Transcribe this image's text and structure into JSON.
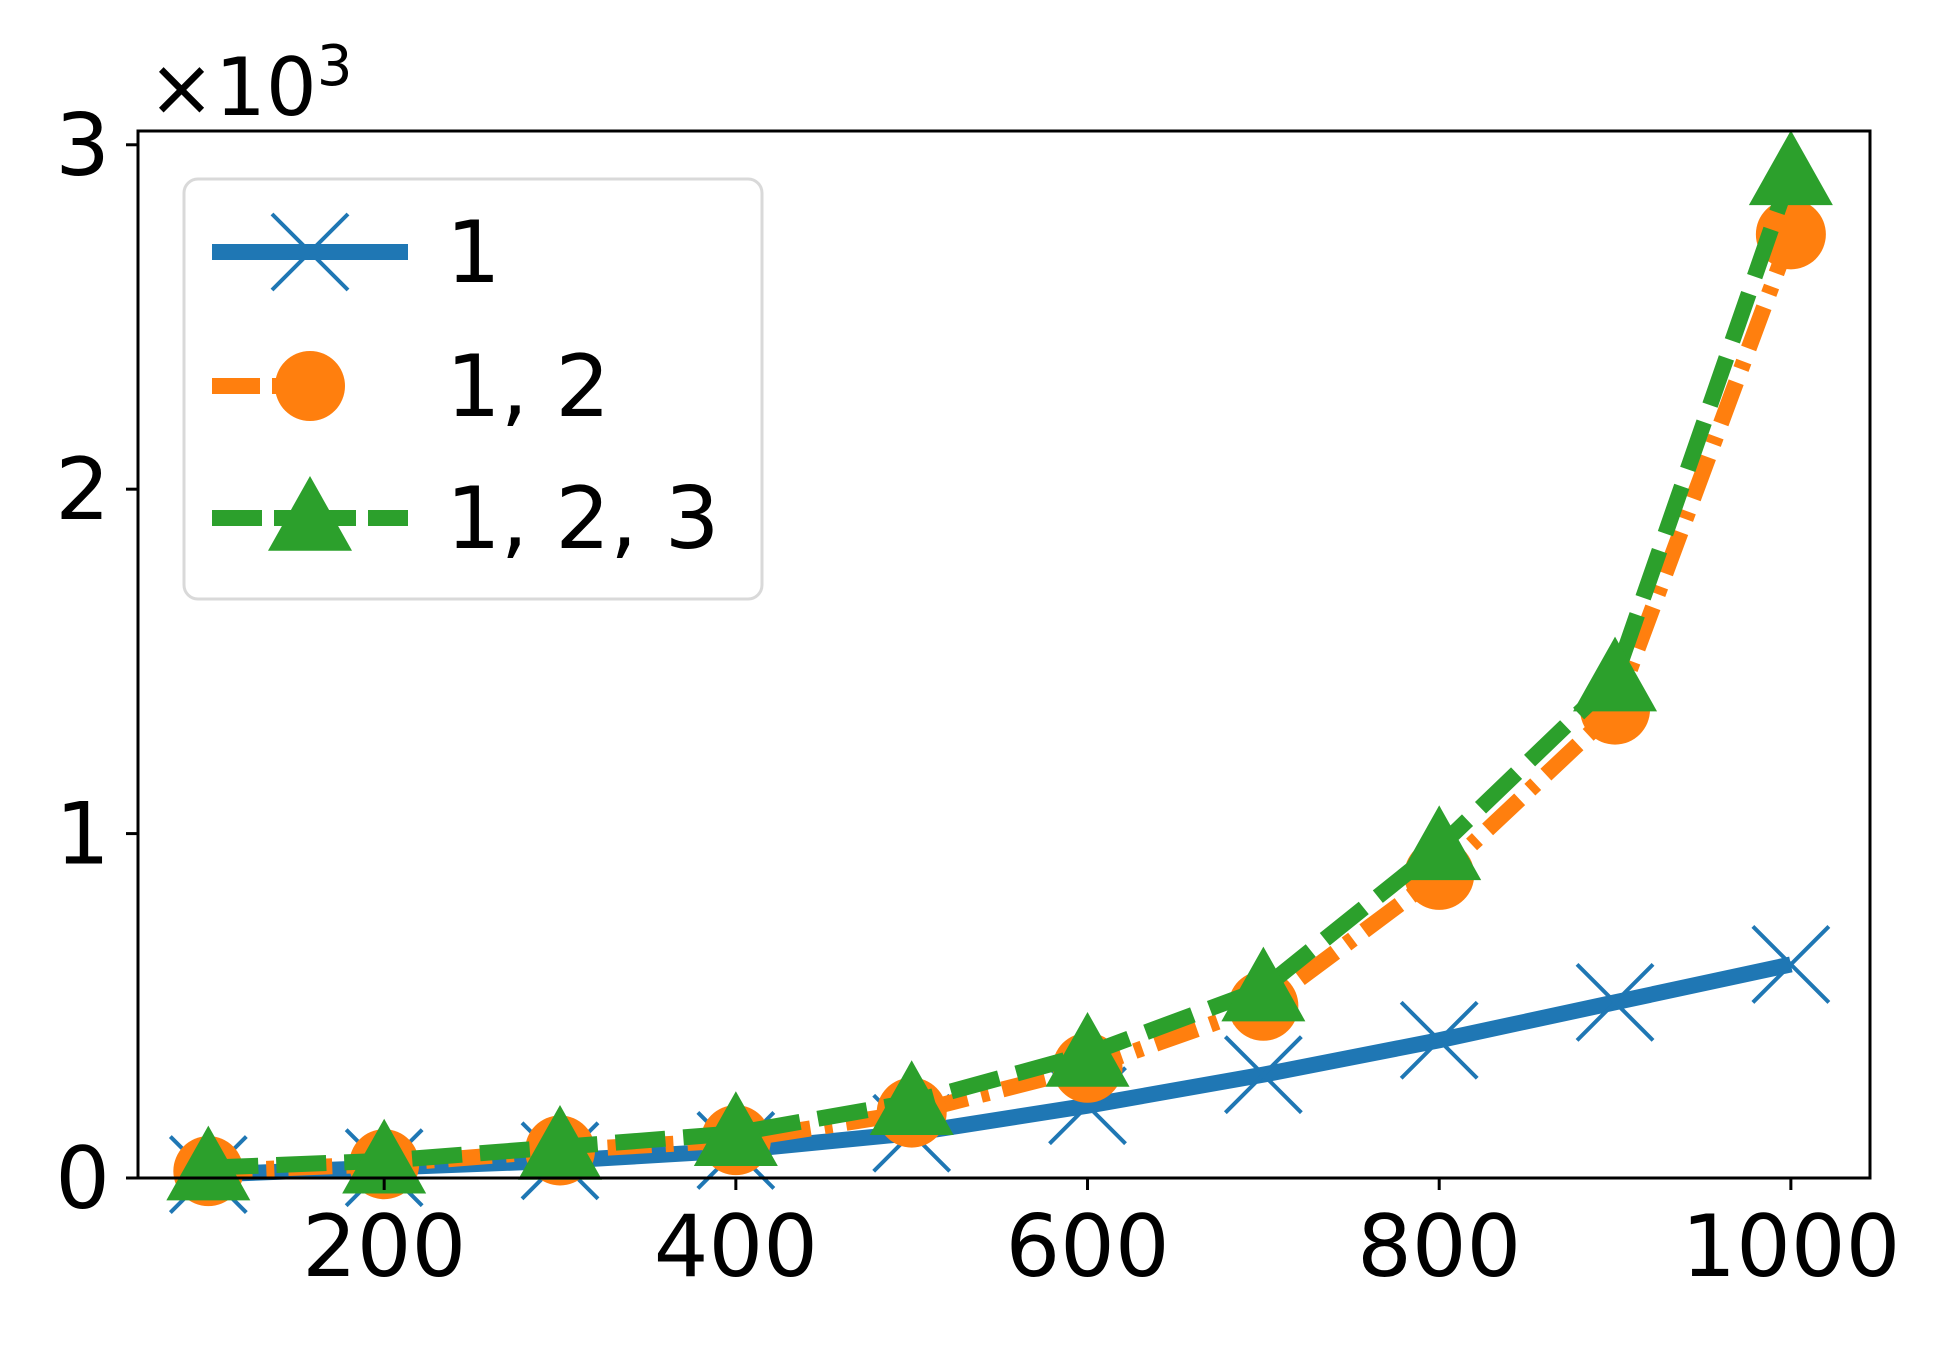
{
  "chart_data": {
    "type": "line",
    "title": "",
    "xlabel": "",
    "ylabel": "",
    "y_multiplier_label": "×10",
    "y_multiplier_exponent": "3",
    "xlim": [
      60,
      1045
    ],
    "ylim": [
      0,
      3.04
    ],
    "x_ticks": [
      200,
      400,
      600,
      800,
      1000
    ],
    "x_tick_labels": [
      "200",
      "400",
      "600",
      "800",
      "1000"
    ],
    "y_ticks": [
      0,
      1,
      2,
      3
    ],
    "y_tick_labels": [
      "0",
      "1",
      "2",
      "3"
    ],
    "grid": false,
    "legend_position": "upper-left",
    "x": [
      100,
      200,
      300,
      400,
      500,
      600,
      700,
      800,
      900,
      1000
    ],
    "series": [
      {
        "name": "1",
        "color": "#1f77b4",
        "marker": "x",
        "line_style": "solid",
        "values": [
          0.01,
          0.03,
          0.05,
          0.08,
          0.13,
          0.21,
          0.3,
          0.4,
          0.51,
          0.62
        ]
      },
      {
        "name": "1, 2",
        "color": "#ff7f0e",
        "marker": "circle",
        "line_style": "dashdot",
        "values": [
          0.02,
          0.04,
          0.08,
          0.11,
          0.19,
          0.32,
          0.5,
          0.88,
          1.36,
          2.74
        ]
      },
      {
        "name": "1, 2, 3",
        "color": "#2ca02c",
        "marker": "triangle",
        "line_style": "dashed",
        "values": [
          0.03,
          0.05,
          0.09,
          0.13,
          0.22,
          0.36,
          0.55,
          0.96,
          1.45,
          2.92
        ]
      }
    ]
  }
}
